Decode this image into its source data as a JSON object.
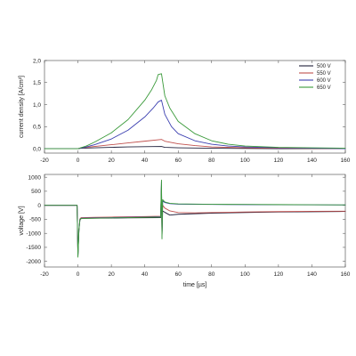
{
  "chart_data": [
    {
      "type": "line",
      "title": "",
      "xlabel": "",
      "ylabel": "current density [A/cm²]",
      "xlim": [
        -20,
        160
      ],
      "ylim": [
        -0.1,
        2.0
      ],
      "x_ticks": [
        -20,
        0,
        20,
        40,
        60,
        80,
        100,
        120,
        140,
        160
      ],
      "x_tick_labels": [
        "-20",
        "0",
        "20",
        "40",
        "60",
        "80",
        "100",
        "120",
        "140",
        "160"
      ],
      "y_ticks": [
        0.0,
        0.5,
        1.0,
        1.5,
        2.0
      ],
      "y_tick_labels": [
        "0,0",
        "0,5",
        "1,0",
        "1,5",
        "2,0"
      ],
      "grid": false,
      "legend_position": "top-right",
      "series": [
        {
          "name": "500 V",
          "color": "#1f1f3a",
          "points": [
            [
              -20,
              0
            ],
            [
              0,
              0
            ],
            [
              2,
              0.01
            ],
            [
              10,
              0.02
            ],
            [
              20,
              0.03
            ],
            [
              30,
              0.04
            ],
            [
              40,
              0.045
            ],
            [
              50,
              0.05
            ],
            [
              52,
              0.03
            ],
            [
              60,
              0.02
            ],
            [
              80,
              0.01
            ],
            [
              100,
              0.005
            ],
            [
              120,
              0
            ],
            [
              160,
              0
            ]
          ]
        },
        {
          "name": "550 V",
          "color": "#c0504d",
          "points": [
            [
              -20,
              0
            ],
            [
              0,
              0
            ],
            [
              2,
              0.02
            ],
            [
              10,
              0.05
            ],
            [
              20,
              0.09
            ],
            [
              30,
              0.13
            ],
            [
              40,
              0.17
            ],
            [
              50,
              0.21
            ],
            [
              52,
              0.17
            ],
            [
              60,
              0.11
            ],
            [
              70,
              0.07
            ],
            [
              80,
              0.04
            ],
            [
              100,
              0.02
            ],
            [
              120,
              0.01
            ],
            [
              160,
              0
            ]
          ]
        },
        {
          "name": "600 V",
          "color": "#3b3fb0",
          "points": [
            [
              -20,
              0
            ],
            [
              0,
              0
            ],
            [
              5,
              0.04
            ],
            [
              10,
              0.09
            ],
            [
              20,
              0.22
            ],
            [
              30,
              0.42
            ],
            [
              40,
              0.72
            ],
            [
              45,
              0.92
            ],
            [
              48,
              1.06
            ],
            [
              50,
              1.1
            ],
            [
              52,
              0.78
            ],
            [
              56,
              0.5
            ],
            [
              60,
              0.34
            ],
            [
              70,
              0.18
            ],
            [
              80,
              0.1
            ],
            [
              90,
              0.06
            ],
            [
              100,
              0.04
            ],
            [
              120,
              0.02
            ],
            [
              160,
              0
            ]
          ]
        },
        {
          "name": "650 V",
          "color": "#3a9a3a",
          "points": [
            [
              -20,
              0
            ],
            [
              0,
              0
            ],
            [
              5,
              0.06
            ],
            [
              10,
              0.15
            ],
            [
              20,
              0.36
            ],
            [
              30,
              0.66
            ],
            [
              40,
              1.1
            ],
            [
              44,
              1.33
            ],
            [
              47,
              1.55
            ],
            [
              48,
              1.68
            ],
            [
              50,
              1.7
            ],
            [
              52,
              1.2
            ],
            [
              55,
              0.92
            ],
            [
              60,
              0.62
            ],
            [
              70,
              0.34
            ],
            [
              80,
              0.18
            ],
            [
              90,
              0.1
            ],
            [
              100,
              0.06
            ],
            [
              120,
              0.03
            ],
            [
              140,
              0.02
            ],
            [
              160,
              0.01
            ]
          ]
        }
      ]
    },
    {
      "type": "line",
      "title": "",
      "xlabel": "time [µs]",
      "ylabel": "voltage [V]",
      "xlim": [
        -20,
        160
      ],
      "ylim": [
        -2200,
        1100
      ],
      "x_ticks": [
        -20,
        0,
        20,
        40,
        60,
        80,
        100,
        120,
        140,
        160
      ],
      "x_tick_labels": [
        "-20",
        "0",
        "20",
        "40",
        "60",
        "80",
        "100",
        "120",
        "140",
        "160"
      ],
      "y_ticks": [
        -2000,
        -1500,
        -1000,
        -500,
        0,
        500,
        1000
      ],
      "y_tick_labels": [
        "-2000",
        "-1500",
        "-1000",
        "-500",
        "0",
        "500",
        "1000"
      ],
      "grid": false,
      "legend_position": "none",
      "series": [
        {
          "name": "500 V",
          "color": "#1f1f3a",
          "points": [
            [
              -20,
              0
            ],
            [
              -0.5,
              0
            ],
            [
              0,
              -1800
            ],
            [
              0.6,
              -900
            ],
            [
              1.2,
              -520
            ],
            [
              2,
              -470
            ],
            [
              10,
              -460
            ],
            [
              20,
              -455
            ],
            [
              30,
              -450
            ],
            [
              40,
              -445
            ],
            [
              49.5,
              -440
            ],
            [
              50,
              700
            ],
            [
              50.3,
              -1100
            ],
            [
              50.7,
              -200
            ],
            [
              52,
              -250
            ],
            [
              55,
              -350
            ],
            [
              60,
              -320
            ],
            [
              70,
              -300
            ],
            [
              80,
              -280
            ],
            [
              100,
              -260
            ],
            [
              120,
              -240
            ],
            [
              140,
              -230
            ],
            [
              160,
              -220
            ]
          ]
        },
        {
          "name": "550 V",
          "color": "#c0504d",
          "points": [
            [
              -20,
              0
            ],
            [
              -0.5,
              0
            ],
            [
              0,
              -1750
            ],
            [
              0.6,
              -850
            ],
            [
              1.2,
              -480
            ],
            [
              2,
              -440
            ],
            [
              10,
              -430
            ],
            [
              20,
              -420
            ],
            [
              30,
              -410
            ],
            [
              40,
              -400
            ],
            [
              49.5,
              -390
            ],
            [
              50,
              650
            ],
            [
              50.3,
              -1000
            ],
            [
              50.7,
              0
            ],
            [
              52,
              -100
            ],
            [
              55,
              -200
            ],
            [
              60,
              -260
            ],
            [
              70,
              -270
            ],
            [
              80,
              -260
            ],
            [
              100,
              -240
            ],
            [
              120,
              -225
            ],
            [
              140,
              -215
            ],
            [
              160,
              -210
            ]
          ]
        },
        {
          "name": "600 V",
          "color": "#3b3fb0",
          "points": [
            [
              -20,
              0
            ],
            [
              -0.5,
              0
            ],
            [
              0,
              -1780
            ],
            [
              0.6,
              -880
            ],
            [
              1.2,
              -500
            ],
            [
              2,
              -460
            ],
            [
              10,
              -450
            ],
            [
              20,
              -440
            ],
            [
              30,
              -430
            ],
            [
              40,
              -420
            ],
            [
              49.5,
              -410
            ],
            [
              50,
              850
            ],
            [
              50.3,
              -1150
            ],
            [
              50.7,
              150
            ],
            [
              52,
              100
            ],
            [
              55,
              60
            ],
            [
              60,
              40
            ],
            [
              80,
              30
            ],
            [
              100,
              25
            ],
            [
              120,
              20
            ],
            [
              140,
              15
            ],
            [
              160,
              10
            ]
          ]
        },
        {
          "name": "650 V",
          "color": "#3a9a3a",
          "points": [
            [
              -20,
              0
            ],
            [
              -0.5,
              0
            ],
            [
              0,
              -1850
            ],
            [
              0.6,
              -900
            ],
            [
              1.2,
              -510
            ],
            [
              2,
              -470
            ],
            [
              10,
              -460
            ],
            [
              20,
              -450
            ],
            [
              30,
              -440
            ],
            [
              40,
              -430
            ],
            [
              49.5,
              -420
            ],
            [
              50,
              900
            ],
            [
              50.3,
              -1200
            ],
            [
              50.7,
              200
            ],
            [
              52,
              120
            ],
            [
              55,
              70
            ],
            [
              60,
              50
            ],
            [
              80,
              35
            ],
            [
              100,
              30
            ],
            [
              120,
              25
            ],
            [
              140,
              20
            ],
            [
              160,
              15
            ]
          ]
        }
      ]
    }
  ]
}
